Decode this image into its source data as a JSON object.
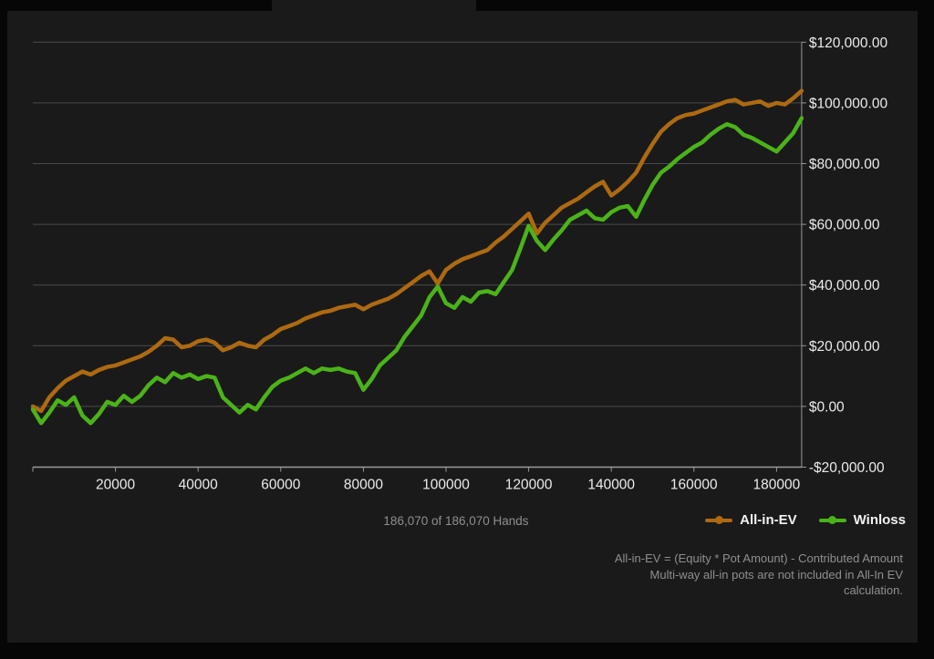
{
  "chart_data": {
    "type": "line",
    "x_range": [
      0,
      186070
    ],
    "y_range": [
      -20000,
      120000
    ],
    "grid": true,
    "legend_position": "bottom-right",
    "colors": {
      "background": "#1a1a1a",
      "grid": "#4b4b4b",
      "axis": "#9a9a9a",
      "tick_text": "#ececec"
    },
    "y_ticks": [
      {
        "value": 120000,
        "label": "$120,000.00"
      },
      {
        "value": 100000,
        "label": "$100,000.00"
      },
      {
        "value": 80000,
        "label": "$80,000.00"
      },
      {
        "value": 60000,
        "label": "$60,000.00"
      },
      {
        "value": 40000,
        "label": "$40,000.00"
      },
      {
        "value": 20000,
        "label": "$20,000.00"
      },
      {
        "value": 0,
        "label": "$0.00"
      },
      {
        "value": -20000,
        "label": "-$20,000.00"
      }
    ],
    "x_ticks": [
      {
        "value": 0,
        "label": ""
      },
      {
        "value": 20000,
        "label": "20000"
      },
      {
        "value": 40000,
        "label": "40000"
      },
      {
        "value": 60000,
        "label": "60000"
      },
      {
        "value": 80000,
        "label": "80000"
      },
      {
        "value": 100000,
        "label": "100000"
      },
      {
        "value": 120000,
        "label": "120000"
      },
      {
        "value": 140000,
        "label": "140000"
      },
      {
        "value": 160000,
        "label": "160000"
      },
      {
        "value": 180000,
        "label": "180000"
      }
    ],
    "series": [
      {
        "name": "All-in-EV",
        "color": "#ad6a11",
        "points": [
          [
            0,
            0
          ],
          [
            2000,
            -1500
          ],
          [
            4000,
            3000
          ],
          [
            6000,
            6000
          ],
          [
            8000,
            8500
          ],
          [
            10000,
            10000
          ],
          [
            12000,
            11500
          ],
          [
            14000,
            10500
          ],
          [
            16000,
            12000
          ],
          [
            18000,
            13000
          ],
          [
            20000,
            13500
          ],
          [
            22000,
            14500
          ],
          [
            24000,
            15500
          ],
          [
            26000,
            16500
          ],
          [
            28000,
            18000
          ],
          [
            30000,
            20000
          ],
          [
            32000,
            22500
          ],
          [
            34000,
            22000
          ],
          [
            36000,
            19500
          ],
          [
            38000,
            20000
          ],
          [
            40000,
            21500
          ],
          [
            42000,
            22000
          ],
          [
            44000,
            21000
          ],
          [
            46000,
            18500
          ],
          [
            48000,
            19500
          ],
          [
            50000,
            21000
          ],
          [
            52000,
            20000
          ],
          [
            54000,
            19500
          ],
          [
            56000,
            22000
          ],
          [
            58000,
            23500
          ],
          [
            60000,
            25500
          ],
          [
            62000,
            26500
          ],
          [
            64000,
            27500
          ],
          [
            66000,
            29000
          ],
          [
            68000,
            30000
          ],
          [
            70000,
            31000
          ],
          [
            72000,
            31500
          ],
          [
            74000,
            32500
          ],
          [
            76000,
            33000
          ],
          [
            78000,
            33500
          ],
          [
            80000,
            32000
          ],
          [
            82000,
            33500
          ],
          [
            84000,
            34500
          ],
          [
            86000,
            35500
          ],
          [
            88000,
            37000
          ],
          [
            90000,
            39000
          ],
          [
            92000,
            41000
          ],
          [
            94000,
            43000
          ],
          [
            96000,
            44500
          ],
          [
            98000,
            40500
          ],
          [
            100000,
            45000
          ],
          [
            102000,
            47000
          ],
          [
            104000,
            48500
          ],
          [
            106000,
            49500
          ],
          [
            108000,
            50500
          ],
          [
            110000,
            51500
          ],
          [
            112000,
            54000
          ],
          [
            114000,
            56000
          ],
          [
            116000,
            58500
          ],
          [
            118000,
            61000
          ],
          [
            120000,
            63500
          ],
          [
            122000,
            57000
          ],
          [
            124000,
            60500
          ],
          [
            126000,
            63000
          ],
          [
            128000,
            65500
          ],
          [
            130000,
            67000
          ],
          [
            132000,
            68500
          ],
          [
            134000,
            70500
          ],
          [
            136000,
            72500
          ],
          [
            138000,
            74000
          ],
          [
            140000,
            69500
          ],
          [
            142000,
            71500
          ],
          [
            144000,
            74000
          ],
          [
            146000,
            77000
          ],
          [
            148000,
            82000
          ],
          [
            150000,
            86500
          ],
          [
            152000,
            90500
          ],
          [
            154000,
            93000
          ],
          [
            156000,
            95000
          ],
          [
            158000,
            96000
          ],
          [
            160000,
            96500
          ],
          [
            162000,
            97500
          ],
          [
            164000,
            98500
          ],
          [
            166000,
            99500
          ],
          [
            168000,
            100500
          ],
          [
            170000,
            101000
          ],
          [
            172000,
            99500
          ],
          [
            174000,
            100000
          ],
          [
            176000,
            100500
          ],
          [
            178000,
            99000
          ],
          [
            180000,
            100000
          ],
          [
            182000,
            99500
          ],
          [
            184000,
            101500
          ],
          [
            186070,
            104000
          ]
        ]
      },
      {
        "name": "Winloss",
        "color": "#4bb319",
        "points": [
          [
            0,
            -1000
          ],
          [
            2000,
            -5500
          ],
          [
            4000,
            -2000
          ],
          [
            6000,
            2000
          ],
          [
            8000,
            500
          ],
          [
            10000,
            3000
          ],
          [
            12000,
            -3000
          ],
          [
            14000,
            -5500
          ],
          [
            16000,
            -2500
          ],
          [
            18000,
            1500
          ],
          [
            20000,
            500
          ],
          [
            22000,
            3500
          ],
          [
            24000,
            1500
          ],
          [
            26000,
            3500
          ],
          [
            28000,
            7000
          ],
          [
            30000,
            9500
          ],
          [
            32000,
            8000
          ],
          [
            34000,
            11000
          ],
          [
            36000,
            9500
          ],
          [
            38000,
            10500
          ],
          [
            40000,
            9000
          ],
          [
            42000,
            10000
          ],
          [
            44000,
            9500
          ],
          [
            46000,
            3000
          ],
          [
            48000,
            500
          ],
          [
            50000,
            -2000
          ],
          [
            52000,
            500
          ],
          [
            54000,
            -1000
          ],
          [
            56000,
            3000
          ],
          [
            58000,
            6500
          ],
          [
            60000,
            8500
          ],
          [
            62000,
            9500
          ],
          [
            64000,
            11000
          ],
          [
            66000,
            12500
          ],
          [
            68000,
            11000
          ],
          [
            70000,
            12500
          ],
          [
            72000,
            12000
          ],
          [
            74000,
            12500
          ],
          [
            76000,
            11500
          ],
          [
            78000,
            11000
          ],
          [
            80000,
            5500
          ],
          [
            82000,
            9000
          ],
          [
            84000,
            13500
          ],
          [
            86000,
            16000
          ],
          [
            88000,
            18500
          ],
          [
            90000,
            23000
          ],
          [
            92000,
            26500
          ],
          [
            94000,
            30000
          ],
          [
            96000,
            36000
          ],
          [
            98000,
            39500
          ],
          [
            100000,
            34000
          ],
          [
            102000,
            32500
          ],
          [
            104000,
            36000
          ],
          [
            106000,
            34500
          ],
          [
            108000,
            37500
          ],
          [
            110000,
            38000
          ],
          [
            112000,
            37000
          ],
          [
            114000,
            41000
          ],
          [
            116000,
            45000
          ],
          [
            118000,
            52000
          ],
          [
            120000,
            59500
          ],
          [
            122000,
            54500
          ],
          [
            124000,
            51500
          ],
          [
            126000,
            55000
          ],
          [
            128000,
            58000
          ],
          [
            130000,
            61500
          ],
          [
            132000,
            63000
          ],
          [
            134000,
            64500
          ],
          [
            136000,
            62000
          ],
          [
            138000,
            61500
          ],
          [
            140000,
            64000
          ],
          [
            142000,
            65500
          ],
          [
            144000,
            66000
          ],
          [
            146000,
            62500
          ],
          [
            148000,
            68000
          ],
          [
            150000,
            73000
          ],
          [
            152000,
            77000
          ],
          [
            154000,
            79000
          ],
          [
            156000,
            81500
          ],
          [
            158000,
            83500
          ],
          [
            160000,
            85500
          ],
          [
            162000,
            87000
          ],
          [
            164000,
            89500
          ],
          [
            166000,
            91500
          ],
          [
            168000,
            93000
          ],
          [
            170000,
            92000
          ],
          [
            172000,
            89500
          ],
          [
            174000,
            88500
          ],
          [
            176000,
            87000
          ],
          [
            178000,
            85500
          ],
          [
            180000,
            84000
          ],
          [
            182000,
            87000
          ],
          [
            184000,
            90000
          ],
          [
            186070,
            95000
          ]
        ]
      }
    ]
  },
  "legend": {
    "items": [
      {
        "label": "All-in-EV",
        "color": "#ad6a11"
      },
      {
        "label": "Winloss",
        "color": "#4bb319"
      }
    ]
  },
  "footer": {
    "hands_counter": "186,070 of 186,070 Hands",
    "disclaimer_line1": "All-in-EV = (Equity * Pot Amount) - Contributed Amount",
    "disclaimer_line2": "Multi-way all-in pots are not included in All-In EV calculation."
  }
}
